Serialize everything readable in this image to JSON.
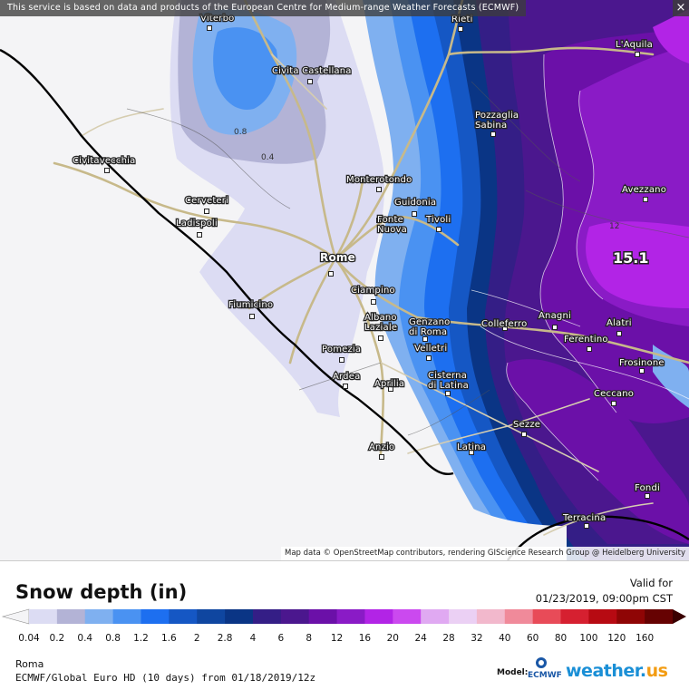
{
  "notice": "This service is based on data and products of the European Centre for Medium-range Weather Forecasts (ECMWF)",
  "close_label": "×",
  "attribution": "Map data © OpenStreetMap contributors, rendering GIScience Research Group @ Heidelberg University",
  "title": "Snow depth (in)",
  "valid_label": "Valid for",
  "valid_time": "01/23/2019, 09:00pm CST",
  "location": "Roma",
  "model_run": "ECMWF/Global Euro HD (10 days) from 01/18/2019/12z",
  "model_label": "Model:",
  "model_logo_text": "ECMWF",
  "brand_name": "weather.",
  "brand_tld": "us",
  "max_value_label": "15.1",
  "scale": {
    "ticks": [
      "0.04",
      "0.2",
      "0.4",
      "0.8",
      "1.2",
      "1.6",
      "2",
      "2.8",
      "4",
      "6",
      "8",
      "12",
      "16",
      "20",
      "24",
      "28",
      "32",
      "40",
      "60",
      "80",
      "100",
      "120",
      "160"
    ],
    "colors": [
      "#f4f4f6",
      "#dcdcf3",
      "#b3b3d6",
      "#7fb0f0",
      "#4a92f2",
      "#1d6ff0",
      "#1557c4",
      "#0f46a0",
      "#0a3585",
      "#341e86",
      "#4b178e",
      "#6b10a8",
      "#8a1bc6",
      "#b224e6",
      "#cb49ef",
      "#e0a9f2",
      "#ebd0f4",
      "#f2b8cc",
      "#f08a9a",
      "#e84b58",
      "#d62030",
      "#b70a12",
      "#8f0505",
      "#660202",
      "#3a0000"
    ]
  },
  "cities": [
    {
      "name": "Viterbo",
      "icon": "city-dot"
    },
    {
      "name": "Rieti",
      "icon": "city-dot"
    },
    {
      "name": "L'Aquila",
      "icon": "city-dot"
    },
    {
      "name": "Civita Castellana",
      "icon": "city-dot"
    },
    {
      "name": "Pozzaglia Sabina",
      "icon": "city-dot"
    },
    {
      "name": "Civitavecchia",
      "icon": "city-dot"
    },
    {
      "name": "Monterotondo",
      "icon": "city-dot"
    },
    {
      "name": "Avezzano",
      "icon": "city-dot"
    },
    {
      "name": "Cerveteri",
      "icon": "city-dot"
    },
    {
      "name": "Guidonia",
      "icon": "city-dot"
    },
    {
      "name": "Ladispoli",
      "icon": "city-dot"
    },
    {
      "name": "Fonte Nuova",
      "icon": "city-dot"
    },
    {
      "name": "Tivoli",
      "icon": "city-dot"
    },
    {
      "name": "Rome",
      "icon": "city-dot"
    },
    {
      "name": "Ciampino",
      "icon": "city-dot"
    },
    {
      "name": "Fiumicino",
      "icon": "city-dot"
    },
    {
      "name": "Albano Laziale",
      "icon": "city-dot"
    },
    {
      "name": "Genzano di Roma",
      "icon": "city-dot"
    },
    {
      "name": "Colleferro",
      "icon": "city-dot"
    },
    {
      "name": "Anagni",
      "icon": "city-dot"
    },
    {
      "name": "Alatri",
      "icon": "city-dot"
    },
    {
      "name": "Ferentino",
      "icon": "city-dot"
    },
    {
      "name": "Pomezia",
      "icon": "city-dot"
    },
    {
      "name": "Velletri",
      "icon": "city-dot"
    },
    {
      "name": "Frosinone",
      "icon": "city-dot"
    },
    {
      "name": "Ardea",
      "icon": "city-dot"
    },
    {
      "name": "Aprilia",
      "icon": "city-dot"
    },
    {
      "name": "Cisterna di Latina",
      "icon": "city-dot"
    },
    {
      "name": "Ceccano",
      "icon": "city-dot"
    },
    {
      "name": "Sezze",
      "icon": "city-dot"
    },
    {
      "name": "Anzio",
      "icon": "city-dot"
    },
    {
      "name": "Latina",
      "icon": "city-dot"
    },
    {
      "name": "Fondi",
      "icon": "city-dot"
    },
    {
      "name": "Terracina",
      "icon": "city-dot"
    }
  ],
  "contour_labels": [
    "0.8",
    "0.4",
    "12"
  ]
}
